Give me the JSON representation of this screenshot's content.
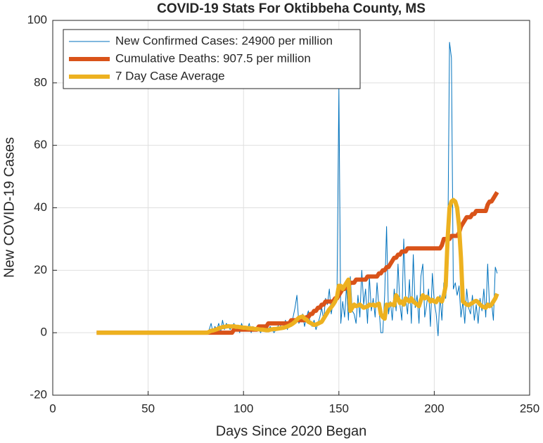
{
  "chart_data": {
    "type": "line",
    "title": "COVID-19 Stats For Oktibbeha County, MS",
    "xlabel": "Days Since 2020 Began",
    "ylabel": "New COVID-19 Cases",
    "xlim": [
      0,
      250
    ],
    "ylim": [
      -20,
      100
    ],
    "xticks": [
      0,
      50,
      100,
      150,
      200,
      250
    ],
    "yticks": [
      -20,
      0,
      20,
      40,
      60,
      80,
      100
    ],
    "grid": true,
    "legend": "northwest",
    "x": [
      23,
      80,
      81,
      82,
      83,
      84,
      85,
      86,
      87,
      88,
      89,
      90,
      91,
      92,
      93,
      94,
      95,
      96,
      97,
      98,
      99,
      100,
      101,
      102,
      103,
      104,
      105,
      106,
      107,
      108,
      109,
      110,
      111,
      112,
      113,
      114,
      115,
      116,
      117,
      118,
      119,
      120,
      121,
      122,
      123,
      124,
      125,
      126,
      127,
      128,
      129,
      130,
      131,
      132,
      133,
      134,
      135,
      136,
      137,
      138,
      139,
      140,
      141,
      142,
      143,
      144,
      145,
      146,
      147,
      148,
      149,
      150,
      151,
      152,
      153,
      154,
      155,
      156,
      157,
      158,
      159,
      160,
      161,
      162,
      163,
      164,
      165,
      166,
      167,
      168,
      169,
      170,
      171,
      172,
      173,
      174,
      175,
      176,
      177,
      178,
      179,
      180,
      181,
      182,
      183,
      184,
      185,
      186,
      187,
      188,
      189,
      190,
      191,
      192,
      193,
      194,
      195,
      196,
      197,
      198,
      199,
      200,
      201,
      202,
      203,
      204,
      205,
      206,
      207,
      208,
      209,
      210,
      211,
      212,
      213,
      214,
      215,
      216,
      217,
      218,
      219,
      220,
      221,
      222,
      223,
      224,
      225,
      226,
      227,
      228,
      229,
      230,
      231,
      232,
      233
    ],
    "series": [
      {
        "name": "New Confirmed Cases: 24900 per million",
        "color": "#0072bd",
        "width": 1,
        "values": [
          0,
          0,
          0,
          1,
          3,
          0,
          2,
          1,
          3,
          0,
          4,
          1,
          3,
          2,
          1,
          2,
          3,
          1,
          2,
          0,
          3,
          1,
          2,
          1,
          3,
          0,
          2,
          1,
          2,
          1,
          0,
          2,
          1,
          3,
          1,
          2,
          1,
          0,
          1,
          2,
          3,
          1,
          2,
          4,
          1,
          3,
          2,
          5,
          8,
          12,
          3,
          4,
          6,
          2,
          5,
          7,
          3,
          2,
          4,
          1,
          3,
          5,
          8,
          4,
          11,
          9,
          14,
          6,
          10,
          9,
          12,
          78,
          3,
          10,
          5,
          15,
          4,
          18,
          7,
          6,
          3,
          12,
          5,
          20,
          9,
          14,
          3,
          18,
          7,
          11,
          5,
          16,
          8,
          0,
          0,
          12,
          34,
          6,
          10,
          4,
          14,
          7,
          22,
          9,
          4,
          30,
          11,
          6,
          17,
          3,
          25,
          8,
          12,
          3,
          18,
          22,
          5,
          9,
          14,
          2,
          19,
          10,
          6,
          -1,
          12,
          4,
          16,
          11,
          20,
          93,
          88,
          14,
          16,
          12,
          15,
          5,
          10,
          3,
          14,
          8,
          6,
          12,
          4,
          9,
          3,
          11,
          7,
          14,
          5,
          22,
          8,
          10,
          4,
          21,
          19
        ]
      },
      {
        "name": "Cumulative Deaths: 907.5 per million",
        "color": "#d95319",
        "width": 6,
        "values": [
          0,
          0,
          0,
          0,
          0,
          0,
          0,
          0,
          0,
          0,
          0,
          0,
          0,
          0,
          0,
          0,
          1,
          1,
          1,
          1,
          1,
          1,
          1,
          1,
          1,
          1,
          1,
          1,
          1,
          2,
          2,
          2,
          2,
          2,
          3,
          3,
          3,
          3,
          3,
          3,
          3,
          3,
          3,
          3,
          3,
          3,
          4,
          4,
          4,
          4,
          4,
          4,
          4,
          4,
          5,
          5,
          6,
          6,
          7,
          7,
          8,
          8,
          9,
          9,
          10,
          10,
          10,
          10,
          10,
          11,
          11,
          12,
          13,
          14,
          14,
          15,
          15,
          16,
          16,
          16,
          17,
          17,
          17,
          17,
          17,
          17,
          18,
          18,
          18,
          18,
          18,
          18,
          19,
          19,
          20,
          20,
          21,
          21,
          22,
          23,
          24,
          24,
          25,
          25,
          26,
          26,
          26,
          27,
          27,
          27,
          27,
          27,
          27,
          27,
          27,
          27,
          27,
          27,
          27,
          27,
          27,
          27,
          27,
          27,
          27,
          28,
          30,
          30,
          30,
          30,
          31,
          31,
          31,
          31,
          32,
          34,
          35,
          36,
          37,
          37,
          37,
          38,
          38,
          39,
          39,
          39,
          39,
          39,
          39,
          41,
          42,
          42,
          43,
          44,
          45
        ]
      },
      {
        "name": "7 Day Case Average",
        "color": "#edb120",
        "width": 6,
        "values": [
          0,
          0,
          0,
          0.3,
          0.6,
          0.7,
          0.9,
          1.1,
          1.4,
          1.6,
          1.8,
          1.9,
          2,
          2.1,
          2,
          2,
          2.1,
          1.9,
          1.9,
          1.8,
          1.7,
          1.6,
          1.6,
          1.5,
          1.4,
          1.4,
          1.3,
          1.2,
          1.2,
          1.1,
          1,
          1,
          0.9,
          0.8,
          0.8,
          1,
          1.1,
          1.2,
          1.2,
          1.3,
          1.4,
          1.5,
          1.6,
          1.8,
          2,
          2.3,
          2.6,
          3,
          3.5,
          4.2,
          4.8,
          5,
          5.2,
          4.5,
          4.2,
          3.5,
          3.2,
          2.8,
          2.5,
          2.6,
          2.9,
          3.2,
          3.5,
          4.5,
          5.5,
          6.5,
          7.5,
          8.2,
          9,
          10,
          11.5,
          15,
          15,
          14,
          15,
          16,
          17,
          7,
          8,
          9,
          8.5,
          8.7,
          9,
          8.5,
          8,
          8.2,
          8.4,
          9,
          8.8,
          9,
          8.6,
          9,
          9.3,
          6,
          5,
          4.5,
          9,
          8.7,
          9.2,
          9,
          8.8,
          12,
          11,
          9.5,
          10,
          9,
          11,
          10.5,
          10,
          11,
          10,
          9.5,
          9,
          8.5,
          10.5,
          12,
          11,
          11.5,
          11,
          10,
          10.5,
          10,
          9.8,
          11,
          10.5,
          10,
          12,
          15,
          30,
          40,
          42,
          42.5,
          42,
          40,
          34,
          24,
          10,
          9.5,
          9,
          8.8,
          9.2,
          9.5,
          10,
          10.2,
          9.8,
          9,
          8.5,
          8.2,
          8,
          9,
          8.5,
          9,
          10,
          11,
          12.5
        ]
      }
    ]
  }
}
